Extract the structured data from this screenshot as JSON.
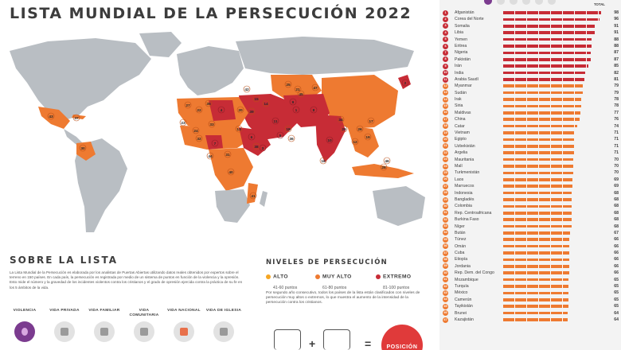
{
  "title": "LISTA MUNDIAL DE LA PERSECUCIÓN 2022",
  "colors": {
    "alto": "#f5a623",
    "muy_alto": "#ee7a31",
    "extremo": "#c72c36",
    "accent": "#e03a3a",
    "violencia": "#7b3b8f"
  },
  "about": {
    "heading": "SOBRE LA LISTA",
    "text": "La Lista Mundial de la Persecución es elaborada por los analistas de Puertas Abiertas utilizando datos reales obtenidos por expertos sobre el terreno en 150 países. En cada país, la persecución es registrada por medio de un sistema de puntos en función de la violencia y la opresión. Esto mide el número y la gravedad de los incidentes violentos contra los cristianos y el grado de opresión ejercida contra la práctica de su fe en los 5 ámbitos de la vida."
  },
  "spheres": [
    {
      "label": "VIOLENCIA",
      "icon": "violence-icon"
    },
    {
      "label": "VIDA PRIVADA",
      "icon": "private-life-icon"
    },
    {
      "label": "VIDA FAMILIAR",
      "icon": "family-life-icon"
    },
    {
      "label": "VIDA COMUNITARIA",
      "icon": "community-life-icon"
    },
    {
      "label": "VIDA NACIONAL",
      "icon": "national-life-icon"
    },
    {
      "label": "VIDA DE IGLESIA",
      "icon": "church-life-icon"
    }
  ],
  "levels": {
    "heading": "NIVELES DE PERSECUCIÓN",
    "items": [
      {
        "name": "ALTO",
        "range": "41-60 puntos",
        "color": "#f5a623"
      },
      {
        "name": "MUY ALTO",
        "range": "61-80 puntos",
        "color": "#ee7a31"
      },
      {
        "name": "EXTREMO",
        "range": "81-100 puntos",
        "color": "#c72c36"
      }
    ],
    "note": "Por segundo año consecutivo, todos los países de la lista están clasificados con niveles de persecución muy altos o extremos, lo que muestra el aumento de la intensidad de la persecución contra los cristianos."
  },
  "formula": {
    "plus": "+",
    "equals": "=",
    "result": "POSICIÓN"
  },
  "ranking": {
    "total_label": "TOTAL",
    "rows": [
      {
        "rank": "1",
        "country": "Afganistán",
        "score": "98"
      },
      {
        "rank": "2",
        "country": "Corea del Norte",
        "score": "96"
      },
      {
        "rank": "3",
        "country": "Somalia",
        "score": "91"
      },
      {
        "rank": "4",
        "country": "Libia",
        "score": "91"
      },
      {
        "rank": "5",
        "country": "Yemen",
        "score": "88"
      },
      {
        "rank": "6",
        "country": "Eritrea",
        "score": "88"
      },
      {
        "rank": "7",
        "country": "Nigeria",
        "score": "87"
      },
      {
        "rank": "8",
        "country": "Pakistán",
        "score": "87"
      },
      {
        "rank": "9",
        "country": "Irán",
        "score": "85"
      },
      {
        "rank": "10",
        "country": "India",
        "score": "82"
      },
      {
        "rank": "11",
        "country": "Arabia Saudí",
        "score": "81"
      },
      {
        "rank": "12",
        "country": "Myanmar",
        "score": "79"
      },
      {
        "rank": "13",
        "country": "Sudán",
        "score": "79"
      },
      {
        "rank": "14",
        "country": "Irak",
        "score": "78"
      },
      {
        "rank": "15",
        "country": "Siria",
        "score": "78"
      },
      {
        "rank": "16",
        "country": "Maldivas",
        "score": "77"
      },
      {
        "rank": "17",
        "country": "China",
        "score": "76"
      },
      {
        "rank": "18",
        "country": "Catar",
        "score": "74"
      },
      {
        "rank": "19",
        "country": "Vietnam",
        "score": "71"
      },
      {
        "rank": "20",
        "country": "Egipto",
        "score": "71"
      },
      {
        "rank": "21",
        "country": "Uzbekistán",
        "score": "71"
      },
      {
        "rank": "22",
        "country": "Argelia",
        "score": "71"
      },
      {
        "rank": "23",
        "country": "Mauritania",
        "score": "70"
      },
      {
        "rank": "24",
        "country": "Malí",
        "score": "70"
      },
      {
        "rank": "25",
        "country": "Turkmenistán",
        "score": "70"
      },
      {
        "rank": "26",
        "country": "Laos",
        "score": "69"
      },
      {
        "rank": "27",
        "country": "Marruecos",
        "score": "69"
      },
      {
        "rank": "28",
        "country": "Indonesia",
        "score": "68"
      },
      {
        "rank": "29",
        "country": "Bangladés",
        "score": "68"
      },
      {
        "rank": "30",
        "country": "Colombia",
        "score": "68"
      },
      {
        "rank": "31",
        "country": "Rep. Centroafricana",
        "score": "68"
      },
      {
        "rank": "32",
        "country": "Burkina Faso",
        "score": "68"
      },
      {
        "rank": "33",
        "country": "Níger",
        "score": "68"
      },
      {
        "rank": "34",
        "country": "Bután",
        "score": "67"
      },
      {
        "rank": "35",
        "country": "Túnez",
        "score": "66"
      },
      {
        "rank": "36",
        "country": "Omán",
        "score": "66"
      },
      {
        "rank": "37",
        "country": "Cuba",
        "score": "66"
      },
      {
        "rank": "38",
        "country": "Etiopía",
        "score": "66"
      },
      {
        "rank": "39",
        "country": "Jordania",
        "score": "66"
      },
      {
        "rank": "40",
        "country": "Rep. Dem. del Congo",
        "score": "66"
      },
      {
        "rank": "41",
        "country": "Mozambique",
        "score": "65"
      },
      {
        "rank": "42",
        "country": "Turquía",
        "score": "65"
      },
      {
        "rank": "43",
        "country": "México",
        "score": "65"
      },
      {
        "rank": "44",
        "country": "Camerún",
        "score": "65"
      },
      {
        "rank": "45",
        "country": "Tayikistán",
        "score": "65"
      },
      {
        "rank": "46",
        "country": "Brunei",
        "score": "64"
      },
      {
        "rank": "47",
        "country": "Kazajistán",
        "score": "64"
      }
    ]
  },
  "map_labels": [
    {
      "n": "1"
    },
    {
      "n": "2"
    },
    {
      "n": "3"
    },
    {
      "n": "4"
    },
    {
      "n": "5"
    },
    {
      "n": "6"
    },
    {
      "n": "7"
    },
    {
      "n": "8"
    },
    {
      "n": "9"
    },
    {
      "n": "10"
    },
    {
      "n": "11"
    },
    {
      "n": "12"
    },
    {
      "n": "13"
    },
    {
      "n": "14"
    },
    {
      "n": "15"
    },
    {
      "n": "16"
    },
    {
      "n": "17"
    },
    {
      "n": "18"
    },
    {
      "n": "19"
    },
    {
      "n": "20"
    },
    {
      "n": "21"
    },
    {
      "n": "22"
    },
    {
      "n": "23"
    },
    {
      "n": "24"
    },
    {
      "n": "25"
    },
    {
      "n": "26"
    },
    {
      "n": "27"
    },
    {
      "n": "28"
    },
    {
      "n": "29"
    },
    {
      "n": "30"
    },
    {
      "n": "31"
    },
    {
      "n": "32"
    },
    {
      "n": "33"
    },
    {
      "n": "34"
    },
    {
      "n": "35"
    },
    {
      "n": "36"
    },
    {
      "n": "37"
    },
    {
      "n": "38"
    },
    {
      "n": "39"
    },
    {
      "n": "40"
    },
    {
      "n": "41"
    },
    {
      "n": "42"
    },
    {
      "n": "43"
    },
    {
      "n": "44"
    },
    {
      "n": "45"
    },
    {
      "n": "46"
    },
    {
      "n": "47"
    }
  ]
}
